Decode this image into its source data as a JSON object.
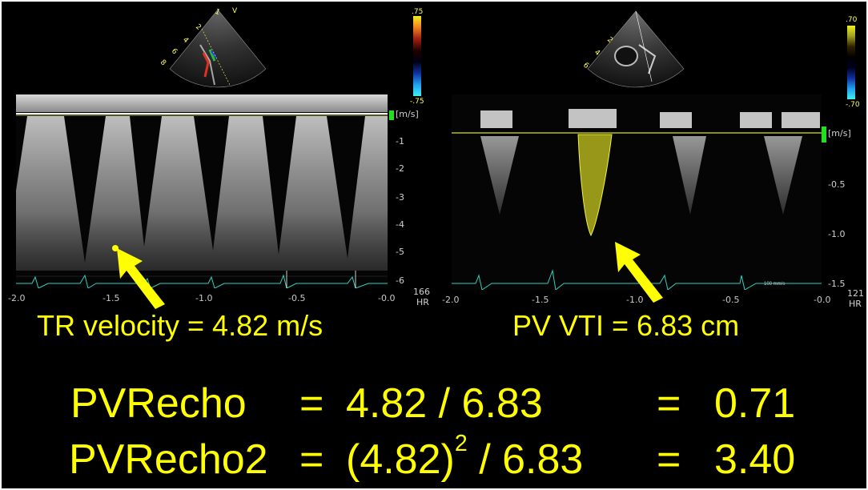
{
  "tr": {
    "caption": "TR velocity = 4.82 m/s",
    "unit": "[m/s]",
    "yticks": [
      "-1",
      "-2",
      "-3",
      "-4",
      "-5",
      "-6"
    ],
    "xticks": [
      "-2.0",
      "-1.5",
      "-1.0",
      "-0.5",
      "-0.0"
    ],
    "hr_value": "166",
    "hr_label": "HR",
    "colorbar_max": ".75",
    "colorbar_min": "-.75"
  },
  "pv": {
    "caption": "PV VTI = 6.83 cm",
    "unit": "[m/s]",
    "yticks": [
      "-0.5",
      "-1.0",
      "-1.5"
    ],
    "xticks": [
      "-2.0",
      "-1.5",
      "-1.0",
      "-0.5",
      "-0.0"
    ],
    "hr_value": "121",
    "hr_label": "HR",
    "colorbar_max": ".70",
    "colorbar_min": "-.70"
  },
  "formulas": [
    {
      "label": "PVRecho",
      "eq": "=",
      "expression": "4.82 / 6.83",
      "result": "0.71"
    },
    {
      "label": "PVRecho2",
      "eq": "=",
      "base": "(4.82)",
      "exponent": "2",
      "divisor": " / 6.83",
      "result": "3.40"
    }
  ],
  "colors": {
    "caption": "#ffff00",
    "background": "#000000",
    "ecg": "#30d0c0"
  }
}
